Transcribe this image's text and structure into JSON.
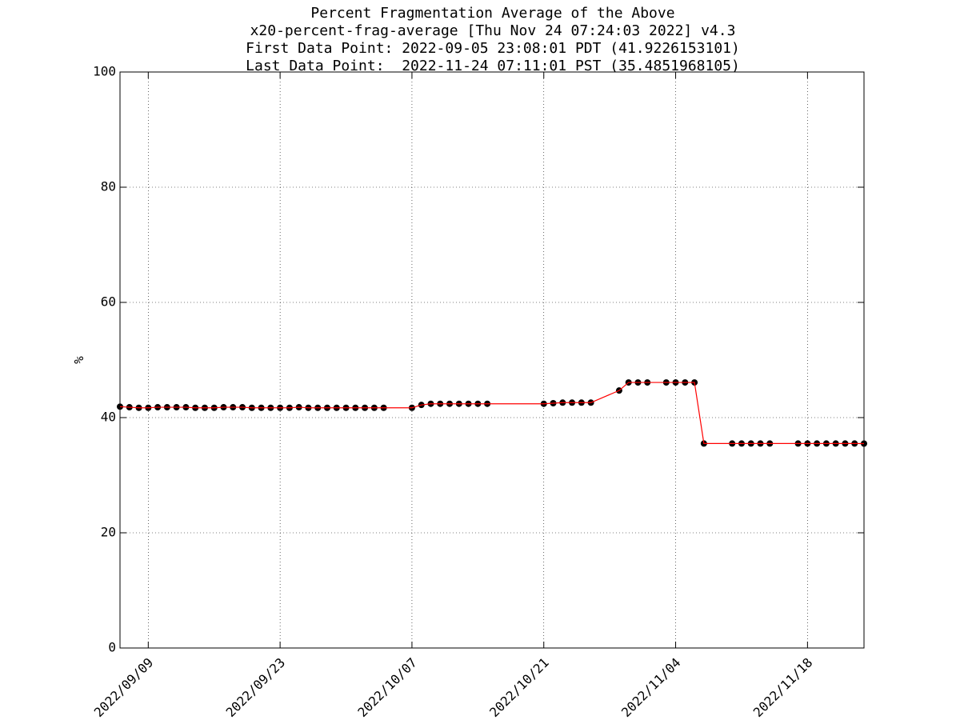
{
  "chart_data": {
    "type": "line",
    "title": [
      "Percent Fragmentation Average of the Above",
      "x20-percent-frag-average [Thu Nov 24 07:24:03 2022] v4.3",
      "First Data Point: 2022-09-05 23:08:01 PDT (41.9226153101)",
      "Last Data Point:  2022-11-24 07:11:01 PST (35.4851968105)"
    ],
    "ylabel": "%",
    "x": [
      "2022-09-06",
      "2022-09-07",
      "2022-09-08",
      "2022-09-09",
      "2022-09-10",
      "2022-09-11",
      "2022-09-12",
      "2022-09-13",
      "2022-09-14",
      "2022-09-15",
      "2022-09-16",
      "2022-09-17",
      "2022-09-18",
      "2022-09-19",
      "2022-09-20",
      "2022-09-21",
      "2022-09-22",
      "2022-09-23",
      "2022-09-24",
      "2022-09-25",
      "2022-09-26",
      "2022-09-27",
      "2022-09-28",
      "2022-09-29",
      "2022-09-30",
      "2022-10-01",
      "2022-10-02",
      "2022-10-03",
      "2022-10-04",
      "2022-10-07",
      "2022-10-08",
      "2022-10-09",
      "2022-10-10",
      "2022-10-11",
      "2022-10-12",
      "2022-10-13",
      "2022-10-14",
      "2022-10-15",
      "2022-10-21",
      "2022-10-22",
      "2022-10-23",
      "2022-10-24",
      "2022-10-25",
      "2022-10-26",
      "2022-10-29",
      "2022-10-30",
      "2022-10-31",
      "2022-11-01",
      "2022-11-03",
      "2022-11-04",
      "2022-11-05",
      "2022-11-06",
      "2022-11-07",
      "2022-11-10",
      "2022-11-11",
      "2022-11-12",
      "2022-11-13",
      "2022-11-14",
      "2022-11-17",
      "2022-11-18",
      "2022-11-19",
      "2022-11-20",
      "2022-11-21",
      "2022-11-22",
      "2022-11-23",
      "2022-11-24"
    ],
    "series": [
      {
        "name": "x20-percent-frag-average",
        "color": "#ff0000",
        "marker_color": "#000000",
        "values": [
          41.9,
          41.8,
          41.7,
          41.7,
          41.8,
          41.8,
          41.8,
          41.8,
          41.7,
          41.7,
          41.7,
          41.8,
          41.8,
          41.8,
          41.7,
          41.7,
          41.7,
          41.7,
          41.7,
          41.8,
          41.7,
          41.7,
          41.7,
          41.7,
          41.7,
          41.7,
          41.7,
          41.7,
          41.7,
          41.7,
          42.2,
          42.4,
          42.4,
          42.4,
          42.4,
          42.4,
          42.4,
          42.4,
          42.4,
          42.5,
          42.6,
          42.6,
          42.6,
          42.6,
          44.7,
          46.1,
          46.1,
          46.1,
          46.1,
          46.1,
          46.1,
          46.1,
          35.5,
          35.5,
          35.5,
          35.5,
          35.5,
          35.5,
          35.5,
          35.5,
          35.5,
          35.5,
          35.5,
          35.5,
          35.5,
          35.4852
        ]
      }
    ],
    "xlim": [
      "2022-09-06",
      "2022-11-24"
    ],
    "xticks": [
      {
        "value": "2022-09-09",
        "label": "2022/09/09"
      },
      {
        "value": "2022-09-23",
        "label": "2022/09/23"
      },
      {
        "value": "2022-10-07",
        "label": "2022/10/07"
      },
      {
        "value": "2022-10-21",
        "label": "2022/10/21"
      },
      {
        "value": "2022-11-04",
        "label": "2022/11/04"
      },
      {
        "value": "2022-11-18",
        "label": "2022/11/18"
      }
    ],
    "ylim": [
      0,
      100
    ],
    "yticks": [
      0,
      20,
      40,
      60,
      80,
      100
    ],
    "grid": true
  }
}
